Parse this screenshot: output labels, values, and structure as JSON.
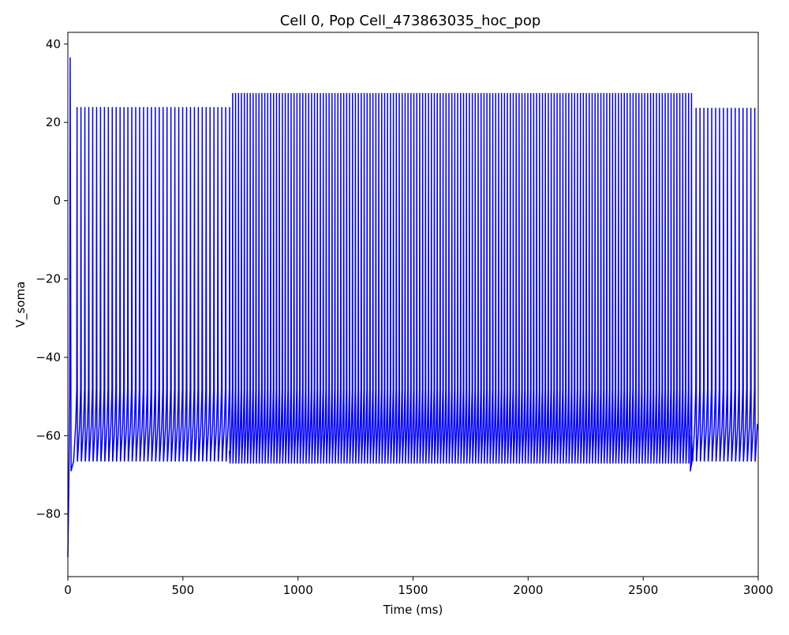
{
  "chart_data": {
    "type": "line",
    "title": "Cell 0, Pop Cell_473863035_hoc_pop",
    "xlabel": "Time (ms)",
    "ylabel": "V_soma",
    "xlim": [
      0,
      3000
    ],
    "ylim": [
      -96,
      43
    ],
    "xticks": [
      0,
      500,
      1000,
      1500,
      2000,
      2500,
      3000
    ],
    "xtick_labels": [
      "0",
      "500",
      "1000",
      "1500",
      "2000",
      "2500",
      "3000"
    ],
    "yticks": [
      -80,
      -60,
      -40,
      -20,
      0,
      20,
      40
    ],
    "ytick_labels": [
      "−80",
      "−60",
      "−40",
      "−20",
      "0",
      "20",
      "40"
    ],
    "grid": false,
    "legend": "none",
    "series": [
      {
        "color": "#0000ff",
        "description": "Repetitive spiking membrane potential trace",
        "initial_rest": -91,
        "first_spike": {
          "t": 10,
          "peak": 36.5,
          "trough": -69
        },
        "segments": [
          {
            "t_start": 25,
            "t_end": 700,
            "spike_interval_ms": 17,
            "peak": 23.8,
            "trough": -66.5
          },
          {
            "t_start": 705,
            "t_end": 2700,
            "spike_interval_ms": 12.7,
            "peak": 27.4,
            "trough": -67
          },
          {
            "t_start": 2715,
            "t_end": 3000,
            "spike_interval_ms": 17,
            "peak": 23.6,
            "trough": -66.5
          }
        ],
        "transition_trough": {
          "t": 2705,
          "value": -69
        }
      }
    ]
  }
}
